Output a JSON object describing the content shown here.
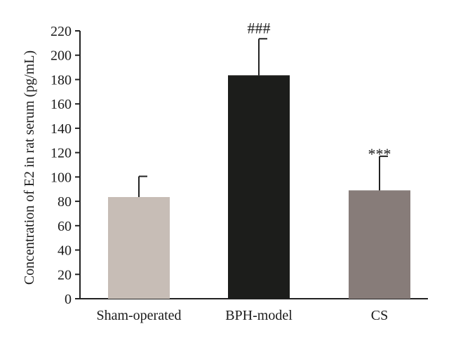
{
  "chart_data": {
    "type": "bar",
    "ylabel": "Concentration of E2 in rat serum (pg/mL)",
    "categories": [
      "Sham-operated",
      "BPH-model",
      "CS"
    ],
    "values": [
      83.5,
      183.5,
      89
    ],
    "errors": [
      17,
      30,
      28
    ],
    "annotations": [
      "",
      "###",
      "***"
    ],
    "colors": [
      "#c7bdb6",
      "#1c1d1b",
      "#877c79"
    ],
    "ylim": [
      0,
      220
    ],
    "yticks": [
      0,
      20,
      40,
      60,
      80,
      100,
      120,
      140,
      160,
      180,
      200,
      220
    ],
    "grid": false,
    "legend": "none"
  }
}
